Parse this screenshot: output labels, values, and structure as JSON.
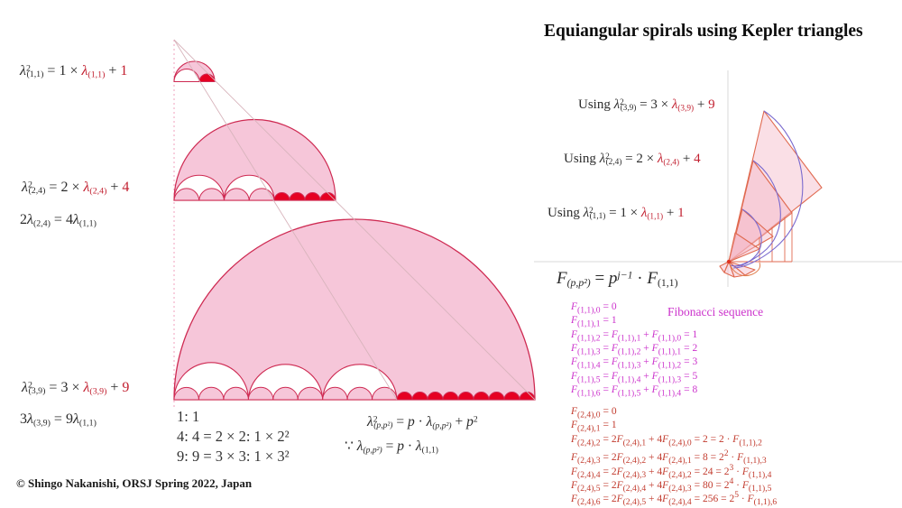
{
  "title": "Equiangular spirals using Kepler triangles",
  "copyright": "© Shingo Nakanishi, ORSJ Spring 2022, Japan",
  "colors": {
    "pink_fill": "#f6c6d9",
    "crimson_outline": "#ce2a52",
    "red_fill": "#e60022",
    "red_formula_text": "#c22030",
    "magenta_text": "#cc33cc",
    "red_fib_text": "#c23b2e",
    "spiral_stroke": "#e06a50",
    "spiral_arc_blue": "#7a6ace",
    "axis_gray": "#d9d9d9"
  },
  "left_formulas": {
    "f1": [
      {
        "t": "λ",
        "i": 1
      },
      {
        "t": "2",
        "sup": 1
      },
      {
        "t": "(1,1)",
        "sub": 1
      },
      {
        "t": " = 1 × "
      },
      {
        "t": "λ",
        "i": 1,
        "c": "r"
      },
      {
        "t": "(1,1)",
        "sub": 1,
        "c": "r"
      },
      {
        "t": " + "
      },
      {
        "t": "1",
        "c": "r"
      }
    ],
    "f2a": [
      {
        "t": "λ",
        "i": 1
      },
      {
        "t": "2",
        "sup": 1
      },
      {
        "t": "(2,4)",
        "sub": 1
      },
      {
        "t": " = 2 × "
      },
      {
        "t": "λ",
        "i": 1,
        "c": "r"
      },
      {
        "t": "(2,4)",
        "sub": 1,
        "c": "r"
      },
      {
        "t": " + "
      },
      {
        "t": "4",
        "c": "r"
      }
    ],
    "f2b": [
      {
        "t": "2"
      },
      {
        "t": "λ",
        "i": 1
      },
      {
        "t": "(2,4)",
        "sub": 1
      },
      {
        "t": " = 4"
      },
      {
        "t": "λ",
        "i": 1
      },
      {
        "t": "(1,1)",
        "sub": 1
      }
    ],
    "f3a": [
      {
        "t": "λ",
        "i": 1
      },
      {
        "t": "2",
        "sup": 1
      },
      {
        "t": "(3,9)",
        "sub": 1
      },
      {
        "t": " = 3 × "
      },
      {
        "t": "λ",
        "i": 1,
        "c": "r"
      },
      {
        "t": "(3,9)",
        "sub": 1,
        "c": "r"
      },
      {
        "t": " + "
      },
      {
        "t": "9",
        "c": "r"
      }
    ],
    "f3b": [
      {
        "t": "3"
      },
      {
        "t": "λ",
        "i": 1
      },
      {
        "t": "(3,9)",
        "sub": 1
      },
      {
        "t": " = 9"
      },
      {
        "t": "λ",
        "i": 1
      },
      {
        "t": "(1,1)",
        "sub": 1
      }
    ]
  },
  "ratios": [
    "1: 1",
    "4: 4 = 2 × 2: 1 × 2²",
    "9: 9 = 3 × 3: 1 × 3²"
  ],
  "general_formulas": {
    "gen_a": [
      {
        "t": "λ",
        "i": 1
      },
      {
        "t": "2",
        "sup": 1
      },
      {
        "t": "(p,p²)",
        "sub": 1,
        "i": 1
      },
      {
        "t": " = "
      },
      {
        "t": "p",
        "i": 1
      },
      {
        "t": " · "
      },
      {
        "t": "λ",
        "i": 1
      },
      {
        "t": "(p,p²)",
        "sub": 1,
        "i": 1
      },
      {
        "t": " + "
      },
      {
        "t": "p",
        "i": 1
      },
      {
        "t": "2",
        "sup": 1
      }
    ],
    "gen_b": [
      {
        "t": "∵ "
      },
      {
        "t": "λ",
        "i": 1
      },
      {
        "t": "(p,p²)",
        "sub": 1,
        "i": 1
      },
      {
        "t": " = "
      },
      {
        "t": "p",
        "i": 1
      },
      {
        "t": " · "
      },
      {
        "t": "λ",
        "i": 1
      },
      {
        "t": "(1,1)",
        "sub": 1
      }
    ]
  },
  "using_formulas": {
    "u39": [
      {
        "t": "Using "
      },
      {
        "t": "λ",
        "i": 1
      },
      {
        "t": "2",
        "sup": 1
      },
      {
        "t": "(3,9)",
        "sub": 1
      },
      {
        "t": " = 3 × "
      },
      {
        "t": "λ",
        "i": 1,
        "c": "r"
      },
      {
        "t": "(3,9)",
        "sub": 1,
        "c": "r"
      },
      {
        "t": " + "
      },
      {
        "t": "9",
        "c": "r"
      }
    ],
    "u24": [
      {
        "t": "Using "
      },
      {
        "t": "λ",
        "i": 1
      },
      {
        "t": "2",
        "sup": 1
      },
      {
        "t": "(2,4)",
        "sub": 1
      },
      {
        "t": " = 2 × "
      },
      {
        "t": "λ",
        "i": 1,
        "c": "r"
      },
      {
        "t": "(2,4)",
        "sub": 1,
        "c": "r"
      },
      {
        "t": " + "
      },
      {
        "t": "4",
        "c": "r"
      }
    ],
    "u11": [
      {
        "t": "Using "
      },
      {
        "t": "λ",
        "i": 1
      },
      {
        "t": "2",
        "sup": 1
      },
      {
        "t": "(1,1)",
        "sub": 1
      },
      {
        "t": " = 1 × "
      },
      {
        "t": "λ",
        "i": 1,
        "c": "r"
      },
      {
        "t": "(1,1)",
        "sub": 1,
        "c": "r"
      },
      {
        "t": " + "
      },
      {
        "t": "1",
        "c": "r"
      }
    ]
  },
  "f_general": [
    {
      "t": "F",
      "i": 1
    },
    {
      "t": "(p,p²)",
      "sub": 1,
      "i": 1
    },
    {
      "t": " = "
    },
    {
      "t": "p",
      "i": 1
    },
    {
      "t": "j−1",
      "sup": 1,
      "i": 1
    },
    {
      "t": " · "
    },
    {
      "t": "F",
      "i": 1
    },
    {
      "t": "(1,1)",
      "sub": 1
    }
  ],
  "fibonacci_label": "Fibonacci sequence",
  "fib": {
    "magenta": [
      "F_{(1,1),0} = 0",
      "F_{(1,1),1} = 1",
      "F_{(1,1),2} = F_{(1,1),1} + F_{(1,1),0} = 1",
      "F_{(1,1),3} = F_{(1,1),2} + F_{(1,1),1} = 2",
      "F_{(1,1),4} = F_{(1,1),3} + F_{(1,1),2} = 3",
      "F_{(1,1),5} = F_{(1,1),4} + F_{(1,1),3} = 5",
      "F_{(1,1),6} = F_{(1,1),5} + F_{(1,1),4} = 8"
    ],
    "red": [
      "F_{(2,4),0} = 0",
      "F_{(2,4),1} = 1",
      "F_{(2,4),2} = 2F_{(2,4),1} + 4F_{(2,4),0} = 2 = 2 · F_{(1,1),2}",
      "F_{(2,4),3} = 2F_{(2,4),2} + 4F_{(2,4),1} = 8 = 2^{2} · F_{(1,1),3}",
      "F_{(2,4),4} = 2F_{(2,4),3} + 4F_{(2,4),2} = 24 = 2^{3} · F_{(1,1),4}",
      "F_{(2,4),5} = 2F_{(2,4),4} + 4F_{(2,4),3} = 80 = 2^{4} · F_{(1,1),5}",
      "F_{(2,4),6} = 2F_{(2,4),5} + 4F_{(2,4),4} = 256 = 2^{5} · F_{(1,1),6}"
    ]
  },
  "left_diagram": {
    "figures": [
      {
        "ratio_label": "1: 1",
        "white_semicircles": 1,
        "red_semicircles": 1
      },
      {
        "ratio_label": "4: 4",
        "white_semicircles": 2,
        "pink_humps": 4,
        "red_semicircles": 4
      },
      {
        "ratio_label": "9: 9",
        "white_semicircles": 3,
        "pink_humps": 9,
        "red_semicircles": 9
      }
    ]
  },
  "right_diagram": {
    "description": "Equiangular spiral built from nested Kepler triangles on x-y axes"
  }
}
